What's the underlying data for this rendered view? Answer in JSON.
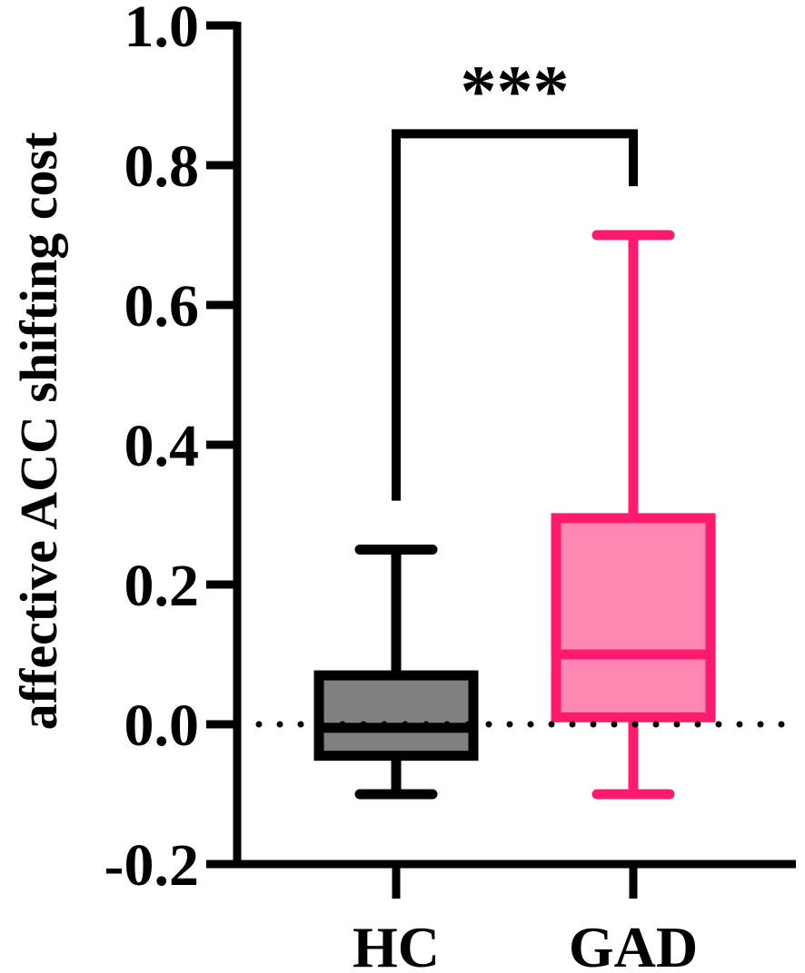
{
  "chart_data": {
    "type": "box",
    "ylabel": "affective ACC shifting cost",
    "xlabel": "",
    "ylim": [
      -0.2,
      1.0
    ],
    "yticks": [
      {
        "value": -0.2,
        "label": "-0.2"
      },
      {
        "value": 0.0,
        "label": "0.0"
      },
      {
        "value": 0.2,
        "label": "0.2"
      },
      {
        "value": 0.4,
        "label": "0.4"
      },
      {
        "value": 0.6,
        "label": "0.6"
      },
      {
        "value": 0.8,
        "label": "0.8"
      },
      {
        "value": 1.0,
        "label": "1.0"
      }
    ],
    "reference_line": {
      "value": 0.0,
      "style": "dotted"
    },
    "categories": [
      "HC",
      "GAD"
    ],
    "series": [
      {
        "category": "HC",
        "min": -0.1,
        "q1": -0.045,
        "median": -0.005,
        "q3": 0.07,
        "max": 0.25,
        "edge_color": "#000000",
        "fill_color": "#808080"
      },
      {
        "category": "GAD",
        "min": -0.1,
        "q1": 0.01,
        "median": 0.1,
        "q3": 0.295,
        "max": 0.7,
        "edge_color": "#ff1a6e",
        "fill_color": "#ff85b3"
      }
    ],
    "significance": {
      "from": "HC",
      "to": "GAD",
      "label": "***",
      "bracket_y": 0.845,
      "left_drop_y": 0.32,
      "right_drop_y": 0.77
    },
    "grid": false,
    "legend": "none"
  }
}
